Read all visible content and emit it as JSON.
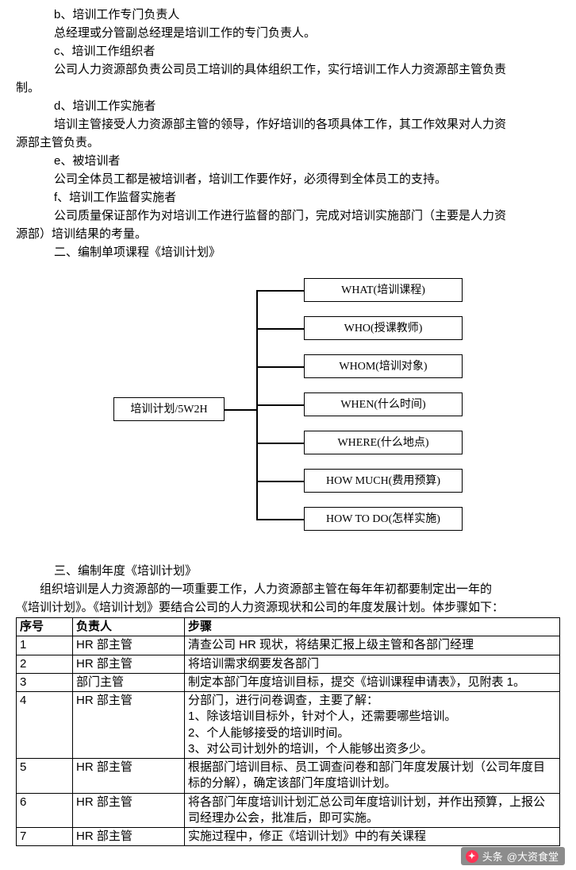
{
  "paragraphs": {
    "b_title": "b、培训工作专门负责人",
    "b_body": "总经理或分管副总经理是培训工作的专门负责人。",
    "c_title": "c、培训工作组织者",
    "c_body": "公司人力资源部负责公司员工培训的具体组织工作，实行培训工作人力资源部主管负责",
    "c_body2": "制。",
    "d_title": "d、培训工作实施者",
    "d_body1": "培训主管接受人力资源部主管的领导，作好培训的各项具体工作，其工作效果对人力资",
    "d_body2": "源部主管负责。",
    "e_title": "e、被培训者",
    "e_body": "公司全体员工都是被培训者，培训工作要作好，必须得到全体员工的支持。",
    "f_title": "f、培训工作监督实施者",
    "f_body1": "公司质量保证部作为对培训工作进行监督的部门，完成对培训实施部门（主要是人力资",
    "f_body2": "源部）培训结果的考量。",
    "sec2": "二、编制单项课程《培训计划》",
    "sec3": "三、编制年度《培训计划》",
    "sec3_body1": "组织培训是人力资源部的一项重要工作，人力资源部主管在每年年初都要制定出一年的",
    "sec3_body2": "《培训计划》。《培训计划》要结合公司的人力资源现状和公司的年度发展计划。体步骤如下："
  },
  "diagram": {
    "root": "培训计划/5W2H",
    "leaves": [
      "WHAT(培训课程)",
      "WHO(授课教师)",
      "WHOM(培训对象)",
      "WHEN(什么时间)",
      "WHERE(什么地点)",
      "HOW MUCH(费用预算)",
      "HOW TO DO(怎样实施)"
    ],
    "leaf_top": [
      4,
      52,
      100,
      148,
      196,
      244,
      292
    ],
    "colors": {
      "border": "#000000",
      "bg": "#ffffff",
      "text": "#000000"
    }
  },
  "table": {
    "headers": [
      "序号",
      "负责人",
      "步骤"
    ],
    "rows": [
      [
        "1",
        "HR 部主管",
        "清查公司 HR 现状，将结果汇报上级主管和各部门经理"
      ],
      [
        "2",
        "HR 部主管",
        "将培训需求纲要发各部门"
      ],
      [
        "3",
        "部门主管",
        "制定本部门年度培训目标，提交《培训课程申请表》，见附表 1。"
      ],
      [
        "4",
        "HR 部主管",
        "分部门，进行问卷调查，主要了解：\n1、除该培训目标外，针对个人，还需要哪些培训。\n2、个人能够接受的培训时间。\n3、对公司计划外的培训，个人能够出资多少。"
      ],
      [
        "5",
        "HR 部主管",
        "根据部门培训目标、员工调查问卷和部门年度发展计划（公司年度目标的分解），确定该部门年度培训计划。"
      ],
      [
        "6",
        "HR 部主管",
        "将各部门年度培训计划汇总公司年度培训计划，并作出预算，上报公司经理办公会，批准后，即可实施。"
      ],
      [
        "7",
        "HR 部主管",
        "实施过程中，修正《培训计划》中的有关课程"
      ]
    ]
  },
  "watermark": {
    "prefix": "头条",
    "author": "@大资食堂"
  }
}
